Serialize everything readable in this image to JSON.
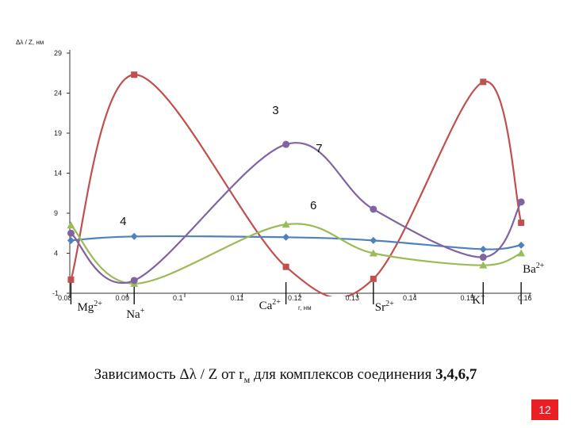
{
  "chart_data": {
    "type": "line",
    "title": "",
    "ylabel": "Δλ / Z, нм",
    "xlabel": "r, нм",
    "xlim": [
      0.08,
      0.16
    ],
    "ylim": [
      -1,
      29
    ],
    "x_ticks": [
      "0.08",
      "0.09",
      "0.1",
      "0.11",
      "0.12",
      "0.13",
      "0.14",
      "0.15",
      "0.16"
    ],
    "y_ticks": [
      "29",
      "24",
      "19",
      "14",
      "9",
      "4",
      "-1"
    ],
    "ions": [
      {
        "label": "Mg",
        "charge": "2+",
        "x": 0.0802
      },
      {
        "label": "Na",
        "charge": "+",
        "x": 0.0912
      },
      {
        "label": "Ca",
        "charge": "2+",
        "x": 0.1176
      },
      {
        "label": "Sr",
        "charge": "2+",
        "x": 0.1328
      },
      {
        "label": "K",
        "charge": "+",
        "x": 0.1519
      },
      {
        "label": "Ba",
        "charge": "2+",
        "x": 0.1585
      }
    ],
    "series": [
      {
        "name": "3",
        "color": "#c0504d",
        "marker": "square",
        "x": [
          0.0802,
          0.0912,
          0.1176,
          0.1328,
          0.1519,
          0.1585
        ],
        "y": [
          0.7,
          26.3,
          2.3,
          0.8,
          25.4,
          7.8
        ]
      },
      {
        "name": "4",
        "color": "#4f81bd",
        "marker": "diamond",
        "x": [
          0.0802,
          0.0912,
          0.1176,
          0.1328,
          0.1519,
          0.1585
        ],
        "y": [
          5.6,
          6.1,
          6.0,
          5.6,
          4.5,
          5.0
        ]
      },
      {
        "name": "6",
        "color": "#9bbb59",
        "marker": "triangle",
        "x": [
          0.0802,
          0.0912,
          0.1176,
          0.1328,
          0.1519,
          0.1585
        ],
        "y": [
          7.5,
          0.2,
          7.6,
          4.0,
          2.5,
          4.0
        ]
      },
      {
        "name": "7",
        "color": "#8064a2",
        "marker": "circle",
        "x": [
          0.0802,
          0.0912,
          0.1176,
          0.1328,
          0.1519,
          0.1585
        ],
        "y": [
          6.5,
          0.6,
          17.6,
          9.5,
          3.5,
          10.4
        ]
      }
    ],
    "series_label_positions": [
      {
        "name": "3",
        "x": 0.1152,
        "y": 21.4
      },
      {
        "name": "7",
        "x": 0.1228,
        "y": 16.6
      },
      {
        "name": "6",
        "x": 0.1218,
        "y": 9.5
      },
      {
        "name": "4",
        "x": 0.0887,
        "y": 7.5
      }
    ]
  },
  "caption": {
    "prefix": "Зависимость Δλ / Z от r",
    "subscript": "м",
    "middle": " для комплексов соединения ",
    "bold": "3,4,6,7"
  },
  "page_number": "12"
}
